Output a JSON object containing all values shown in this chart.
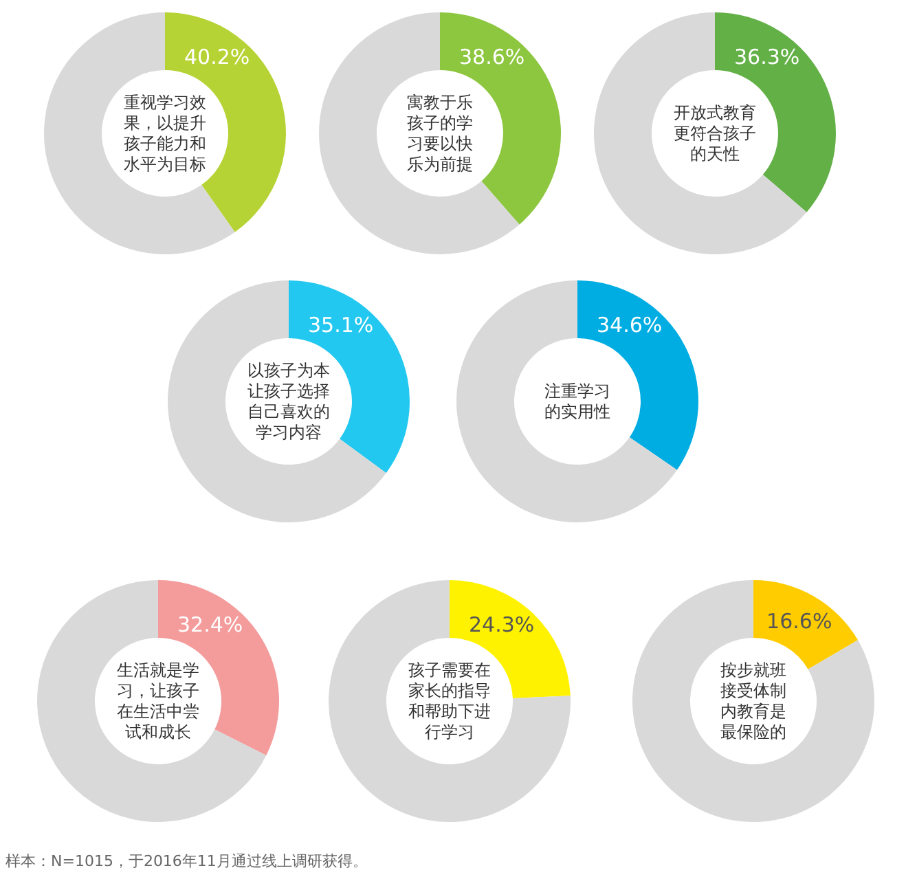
{
  "chart_data": [
    {
      "type": "donut",
      "title": "重视学习效果，以提升孩子能力和水平为目标",
      "categories": [
        null,
        null
      ],
      "values": [
        40.2,
        59.8
      ],
      "colors": [
        "#b5d334",
        "#d9d9d9"
      ],
      "value_labels": [
        "40.2%",
        null
      ]
    },
    {
      "type": "donut",
      "title": "寓教于乐孩子的学习要以快乐为前提",
      "categories": [
        null,
        null
      ],
      "values": [
        38.6,
        61.4
      ],
      "colors": [
        "#8dc63f",
        "#d9d9d9"
      ],
      "value_labels": [
        "38.6%",
        null
      ]
    },
    {
      "type": "donut",
      "title": "开放式教育更符合孩子的天性",
      "categories": [
        null,
        null
      ],
      "values": [
        36.3,
        63.7
      ],
      "colors": [
        "#62b046",
        "#d9d9d9"
      ],
      "value_labels": [
        "36.3%",
        null
      ]
    },
    {
      "type": "donut",
      "title": "以孩子为本让孩子选择自己喜欢的学习内容",
      "categories": [
        null,
        null
      ],
      "values": [
        35.1,
        64.9
      ],
      "colors": [
        "#22c8f0",
        "#d9d9d9"
      ],
      "value_labels": [
        "35.1%",
        null
      ]
    },
    {
      "type": "donut",
      "title": "注重学习的实用性",
      "categories": [
        null,
        null
      ],
      "values": [
        34.6,
        65.4
      ],
      "colors": [
        "#00ade2",
        "#d9d9d9"
      ],
      "value_labels": [
        "34.6%",
        null
      ]
    },
    {
      "type": "donut",
      "title": "生活就是学习，让孩子在生活中尝试和成长",
      "categories": [
        null,
        null
      ],
      "values": [
        32.4,
        67.6
      ],
      "colors": [
        "#f49b9b",
        "#d9d9d9"
      ],
      "value_labels": [
        "32.4%",
        null
      ]
    },
    {
      "type": "donut",
      "title": "孩子需要在家长的指导和帮助下进行学习",
      "categories": [
        null,
        null
      ],
      "values": [
        24.3,
        75.7
      ],
      "colors": [
        "#fff200",
        "#d9d9d9"
      ],
      "value_labels": [
        "24.3%",
        null
      ]
    },
    {
      "type": "donut",
      "title": "按步就班接受体制内教育是最保险的",
      "categories": [
        null,
        null
      ],
      "values": [
        16.6,
        83.4
      ],
      "colors": [
        "#ffcc00",
        "#d9d9d9"
      ],
      "value_labels": [
        "16.6%",
        null
      ],
      "annotations": [
        "样本：N=1015，于2016年11月通过线上调研获得。"
      ]
    }
  ]
}
